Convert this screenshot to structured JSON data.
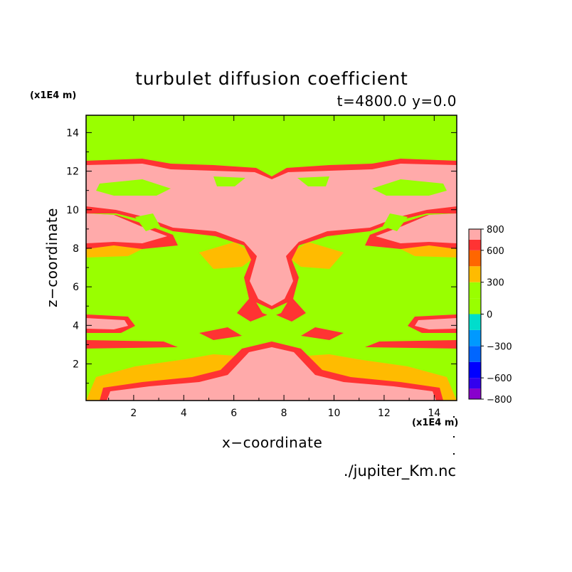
{
  "chart_data": {
    "type": "heatmap",
    "title": "turbulet diffusion coefficient",
    "subtitle": "t=4800.0 y=0.0",
    "xlabel": "x−coordinate",
    "ylabel": "z−coordinate",
    "x_unit": "(x1E4 m)",
    "z_unit": "(x1E4 m)",
    "xlim": [
      0.1,
      14.9
    ],
    "ylim": [
      0.1,
      14.9
    ],
    "x_ticks": [
      "2",
      "4",
      "6",
      "8",
      "10",
      "12",
      "14"
    ],
    "y_ticks": [
      "2",
      "4",
      "6",
      "8",
      "10",
      "12",
      "14"
    ],
    "source": "./jupiter_Km.nc",
    "colorbar": {
      "range": [
        -800,
        800
      ],
      "tick_labels": [
        {
          "value": 800,
          "label": "800"
        },
        {
          "value": 600,
          "label": "600"
        },
        {
          "value": 300,
          "label": "300"
        },
        {
          "value": 0,
          "label": "0"
        },
        {
          "value": -300,
          "label": "−300"
        },
        {
          "value": -600,
          "label": "−600"
        },
        {
          "value": -800,
          "label": "−800"
        }
      ],
      "levels": [
        {
          "from": -800,
          "to": -700,
          "color": "#8800cc"
        },
        {
          "from": -700,
          "to": -600,
          "color": "#3300ee"
        },
        {
          "from": -600,
          "to": -450,
          "color": "#0000ff"
        },
        {
          "from": -450,
          "to": -300,
          "color": "#0066ff"
        },
        {
          "from": -300,
          "to": -150,
          "color": "#0099ff"
        },
        {
          "from": -150,
          "to": 0,
          "color": "#00ddcc"
        },
        {
          "from": 0,
          "to": 150,
          "color": "#99ff00"
        },
        {
          "from": 150,
          "to": 300,
          "color": "#99ff00"
        },
        {
          "from": 300,
          "to": 450,
          "color": "#ffbb00"
        },
        {
          "from": 450,
          "to": 600,
          "color": "#ff6600"
        },
        {
          "from": 600,
          "to": 700,
          "color": "#ff3333"
        },
        {
          "from": 700,
          "to": 800,
          "color": "#ffaaaa"
        }
      ]
    },
    "field_colors": {
      "background": "#99ff00",
      "level_300": "#ffbb00",
      "level_450": "#ff6600",
      "level_600": "#ff3333",
      "level_700": "#ffaaaa"
    },
    "regions": [
      {
        "name": "upper-plume-band",
        "level": 700,
        "z_range": [
          10.5,
          12.8
        ],
        "x_range": [
          0.1,
          14.9
        ]
      },
      {
        "name": "mid-mushroom",
        "level": 700,
        "z_range": [
          4.2,
          9.6
        ],
        "x_range": [
          4.5,
          10.5
        ]
      },
      {
        "name": "left-cap",
        "level": 700,
        "z_range": [
          8.0,
          10.8
        ],
        "x_range": [
          0.1,
          5.0
        ]
      },
      {
        "name": "right-cap",
        "level": 700,
        "z_range": [
          8.0,
          10.8
        ],
        "x_range": [
          10.0,
          14.9
        ]
      },
      {
        "name": "left-finger-z4",
        "level": 700,
        "z_range": [
          3.9,
          4.5
        ],
        "x_range": [
          0.1,
          2.0
        ]
      },
      {
        "name": "right-finger-z4",
        "level": 700,
        "z_range": [
          3.9,
          4.5
        ],
        "x_range": [
          13.0,
          14.9
        ]
      },
      {
        "name": "bottom-dome",
        "level": 700,
        "z_range": [
          0.1,
          3.0
        ],
        "x_range": [
          0.5,
          14.5
        ]
      }
    ]
  }
}
